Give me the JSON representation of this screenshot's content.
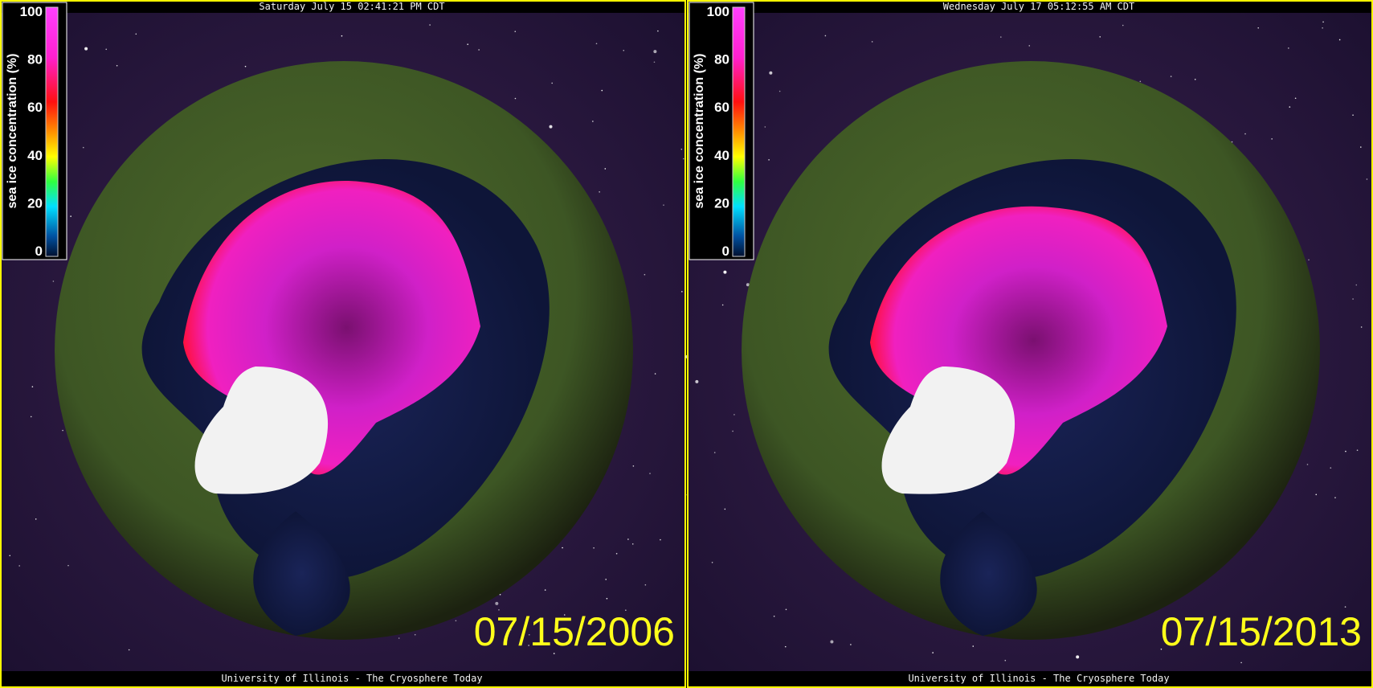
{
  "panels": [
    {
      "header": "Saturday July 15 02:41:21 PM CDT",
      "date": "07/15/2006",
      "footer": "University of Illinois - The Cryosphere Today",
      "colorbar": {
        "title": "sea ice concentration (%)",
        "ticks": [
          0,
          20,
          40,
          60,
          80,
          100
        ]
      }
    },
    {
      "header": "Wednesday July 17 05:12:55 AM CDT",
      "date": "07/15/2013",
      "footer": "University of Illinois - The Cryosphere Today",
      "colorbar": {
        "title": "sea ice concentration (%)",
        "ticks": [
          0,
          20,
          40,
          60,
          80,
          100
        ]
      }
    }
  ]
}
